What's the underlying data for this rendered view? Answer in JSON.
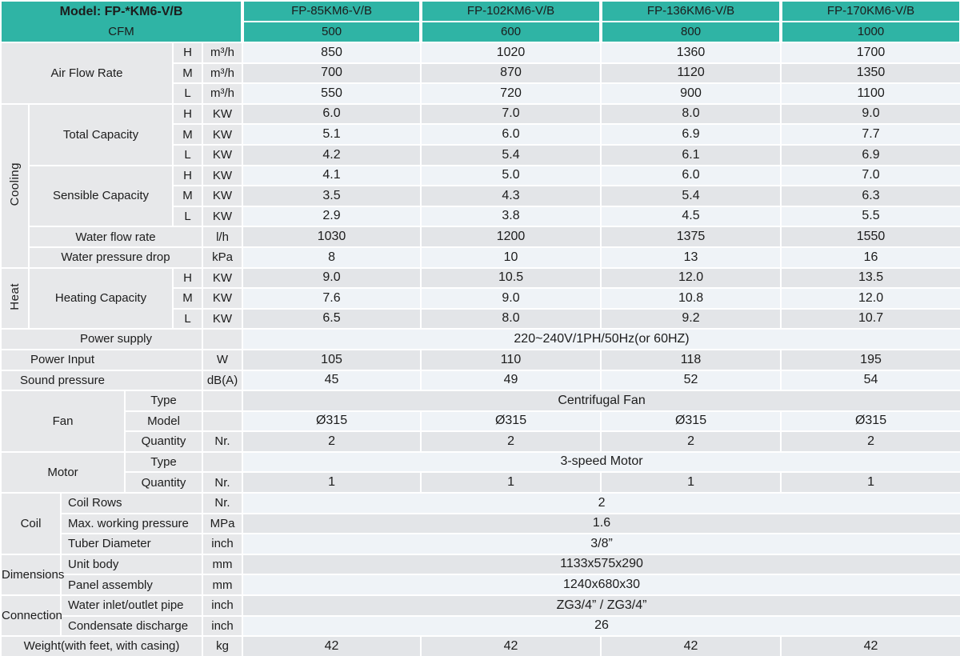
{
  "colors": {
    "accent_teal": "#2fb4a5",
    "label_gray": "#e7e8ea",
    "stripe_light": "#eff3f7",
    "stripe_dark": "#e3e5e8",
    "border_white": "#ffffff",
    "text": "#1c1c1c"
  },
  "table": {
    "rows": [
      {
        "cells": [
          {
            "k": "th-left",
            "cs": 6,
            "rs": 2,
            "lines": [
              "Model: FP-*KM6-V/B",
              "CFM"
            ]
          },
          {
            "k": "th-model",
            "t": "FP-85KM6-V/B"
          },
          {
            "k": "th-model",
            "t": "FP-102KM6-V/B"
          },
          {
            "k": "th-model",
            "t": "FP-136KM6-V/B"
          },
          {
            "k": "th-model",
            "t": "FP-170KM6-V/B"
          }
        ]
      },
      {
        "cells": [
          {
            "k": "th-cfm",
            "t": "500"
          },
          {
            "k": "th-cfm",
            "t": "600"
          },
          {
            "k": "th-cfm",
            "t": "800"
          },
          {
            "k": "th-cfm",
            "t": "1000"
          }
        ]
      },
      {
        "cells": [
          {
            "k": "lbl",
            "cs": 4,
            "rs": 3,
            "t": "Air Flow Rate"
          },
          {
            "k": "sub",
            "t": "H"
          },
          {
            "k": "unit",
            "t": "m³/h"
          },
          {
            "t": "850"
          },
          {
            "t": "1020"
          },
          {
            "t": "1360"
          },
          {
            "t": "1700"
          }
        ]
      },
      {
        "cells": [
          {
            "k": "sub",
            "t": "M"
          },
          {
            "k": "unit",
            "t": "m³/h"
          },
          {
            "t": "700"
          },
          {
            "t": "870"
          },
          {
            "t": "1120"
          },
          {
            "t": "1350"
          }
        ]
      },
      {
        "cells": [
          {
            "k": "sub",
            "t": "L"
          },
          {
            "k": "unit",
            "t": "m³/h"
          },
          {
            "t": "550"
          },
          {
            "t": "720"
          },
          {
            "t": "900"
          },
          {
            "t": "1100"
          }
        ]
      },
      {
        "cells": [
          {
            "k": "grp-v",
            "rs": 8,
            "t": "Cooling"
          },
          {
            "k": "lbl",
            "cs": 3,
            "rs": 3,
            "t": "Total Capacity"
          },
          {
            "k": "sub",
            "t": "H"
          },
          {
            "k": "unit",
            "t": "KW"
          },
          {
            "t": "6.0"
          },
          {
            "t": "7.0"
          },
          {
            "t": "8.0"
          },
          {
            "t": "9.0"
          }
        ]
      },
      {
        "cells": [
          {
            "k": "sub",
            "t": "M"
          },
          {
            "k": "unit",
            "t": "KW"
          },
          {
            "t": "5.1"
          },
          {
            "t": "6.0"
          },
          {
            "t": "6.9"
          },
          {
            "t": "7.7"
          }
        ]
      },
      {
        "cells": [
          {
            "k": "sub",
            "t": "L"
          },
          {
            "k": "unit",
            "t": "KW"
          },
          {
            "t": "4.2"
          },
          {
            "t": "5.4"
          },
          {
            "t": "6.1"
          },
          {
            "t": "6.9"
          }
        ]
      },
      {
        "cells": [
          {
            "k": "lbl",
            "cs": 3,
            "rs": 3,
            "t": "Sensible Capacity"
          },
          {
            "k": "sub",
            "t": "H"
          },
          {
            "k": "unit",
            "t": "KW"
          },
          {
            "t": "4.1"
          },
          {
            "t": "5.0"
          },
          {
            "t": "6.0"
          },
          {
            "t": "7.0"
          }
        ]
      },
      {
        "cells": [
          {
            "k": "sub",
            "t": "M"
          },
          {
            "k": "unit",
            "t": "KW"
          },
          {
            "t": "3.5"
          },
          {
            "t": "4.3"
          },
          {
            "t": "5.4"
          },
          {
            "t": "6.3"
          }
        ]
      },
      {
        "cells": [
          {
            "k": "sub",
            "t": "L"
          },
          {
            "k": "unit",
            "t": "KW"
          },
          {
            "t": "2.9"
          },
          {
            "t": "3.8"
          },
          {
            "t": "4.5"
          },
          {
            "t": "5.5"
          }
        ]
      },
      {
        "cells": [
          {
            "k": "lbl",
            "cs": 4,
            "t": "Water flow rate"
          },
          {
            "k": "unit",
            "t": "l/h"
          },
          {
            "t": "1030"
          },
          {
            "t": "1200"
          },
          {
            "t": "1375"
          },
          {
            "t": "1550"
          }
        ]
      },
      {
        "cells": [
          {
            "k": "lbl",
            "cs": 4,
            "t": "Water pressure drop"
          },
          {
            "k": "unit",
            "t": "kPa"
          },
          {
            "t": "8"
          },
          {
            "t": "10"
          },
          {
            "t": "13"
          },
          {
            "t": "16"
          }
        ]
      },
      {
        "cells": [
          {
            "k": "grp-v",
            "rs": 3,
            "t": "Heat"
          },
          {
            "k": "lbl",
            "cs": 3,
            "rs": 3,
            "t": "Heating Capacity"
          },
          {
            "k": "sub",
            "t": "H"
          },
          {
            "k": "unit",
            "t": "KW"
          },
          {
            "t": "9.0"
          },
          {
            "t": "10.5"
          },
          {
            "t": "12.0"
          },
          {
            "t": "13.5"
          }
        ]
      },
      {
        "cells": [
          {
            "k": "sub",
            "t": "M"
          },
          {
            "k": "unit",
            "t": "KW"
          },
          {
            "t": "7.6"
          },
          {
            "t": "9.0"
          },
          {
            "t": "10.8"
          },
          {
            "t": "12.0"
          }
        ]
      },
      {
        "cells": [
          {
            "k": "sub",
            "t": "L"
          },
          {
            "k": "unit",
            "t": "KW"
          },
          {
            "t": "6.5"
          },
          {
            "t": "8.0"
          },
          {
            "t": "9.2"
          },
          {
            "t": "10.7"
          }
        ]
      },
      {
        "cells": [
          {
            "k": "lbl-pl",
            "cs": 5,
            "t": "Power supply"
          },
          {
            "k": "unit",
            "t": ""
          },
          {
            "cs": 4,
            "t": "220~240V/1PH/50Hz(or 60HZ)"
          }
        ]
      },
      {
        "cells": [
          {
            "k": "lbl-pr",
            "cs": 5,
            "t": "Power Input"
          },
          {
            "k": "unit",
            "t": "W"
          },
          {
            "t": "105"
          },
          {
            "t": "110"
          },
          {
            "t": "118"
          },
          {
            "t": "195"
          }
        ]
      },
      {
        "cells": [
          {
            "k": "lbl-pr",
            "cs": 5,
            "t": "Sound pressure"
          },
          {
            "k": "unit",
            "t": "dB(A)"
          },
          {
            "t": "45"
          },
          {
            "t": "49"
          },
          {
            "t": "52"
          },
          {
            "t": "54"
          }
        ]
      },
      {
        "cells": [
          {
            "k": "grp",
            "cs": 3,
            "rs": 3,
            "t": "Fan"
          },
          {
            "k": "sub",
            "cs": 2,
            "t": "Type"
          },
          {
            "k": "unit",
            "t": ""
          },
          {
            "cs": 4,
            "t": "Centrifugal Fan"
          }
        ]
      },
      {
        "cells": [
          {
            "k": "sub",
            "cs": 2,
            "t": "Model"
          },
          {
            "k": "unit",
            "t": ""
          },
          {
            "t": "Ø315"
          },
          {
            "t": "Ø315"
          },
          {
            "t": "Ø315"
          },
          {
            "t": "Ø315"
          }
        ]
      },
      {
        "cells": [
          {
            "k": "sub",
            "cs": 2,
            "t": "Quantity"
          },
          {
            "k": "unit",
            "t": "Nr."
          },
          {
            "t": "2"
          },
          {
            "t": "2"
          },
          {
            "t": "2"
          },
          {
            "t": "2"
          }
        ]
      },
      {
        "cells": [
          {
            "k": "grp",
            "cs": 3,
            "rs": 2,
            "t": "Motor"
          },
          {
            "k": "sub",
            "cs": 2,
            "t": "Type"
          },
          {
            "k": "unit",
            "t": ""
          },
          {
            "cs": 4,
            "t": "3-speed Motor"
          }
        ]
      },
      {
        "cells": [
          {
            "k": "sub",
            "cs": 2,
            "t": "Quantity"
          },
          {
            "k": "unit",
            "t": "Nr."
          },
          {
            "t": "1"
          },
          {
            "t": "1"
          },
          {
            "t": "1"
          },
          {
            "t": "1"
          }
        ]
      },
      {
        "cells": [
          {
            "k": "grp",
            "cs": 2,
            "rs": 3,
            "t": "Coil"
          },
          {
            "k": "lbl-l",
            "cs": 3,
            "t": "Coil Rows"
          },
          {
            "k": "unit",
            "t": "Nr."
          },
          {
            "cs": 4,
            "t": "2"
          }
        ]
      },
      {
        "cells": [
          {
            "k": "lbl-l",
            "cs": 3,
            "t": "Max. working pressure"
          },
          {
            "k": "unit",
            "t": "MPa"
          },
          {
            "cs": 4,
            "t": "1.6"
          }
        ]
      },
      {
        "cells": [
          {
            "k": "lbl-l",
            "cs": 3,
            "t": "Tuber Diameter"
          },
          {
            "k": "unit",
            "t": "inch"
          },
          {
            "cs": 4,
            "t": "3/8”"
          }
        ]
      },
      {
        "cells": [
          {
            "k": "grp-of",
            "cs": 2,
            "rs": 2,
            "t": "Dimensions"
          },
          {
            "k": "lbl-l",
            "cs": 3,
            "t": "Unit body"
          },
          {
            "k": "unit",
            "t": "mm"
          },
          {
            "cs": 4,
            "t": "1133x575x290"
          }
        ]
      },
      {
        "cells": [
          {
            "k": "lbl-l",
            "cs": 3,
            "t": "Panel assembly"
          },
          {
            "k": "unit",
            "t": "mm"
          },
          {
            "cs": 4,
            "t": "1240x680x30"
          }
        ]
      },
      {
        "cells": [
          {
            "k": "grp-of",
            "cs": 2,
            "rs": 2,
            "t": "Connection"
          },
          {
            "k": "lbl-l",
            "cs": 3,
            "t": "Water inlet/outlet pipe"
          },
          {
            "k": "unit",
            "t": "inch"
          },
          {
            "cs": 4,
            "t": "ZG3/4” / ZG3/4”"
          }
        ]
      },
      {
        "cells": [
          {
            "k": "lbl-l",
            "cs": 3,
            "t": "Condensate discharge"
          },
          {
            "k": "unit",
            "t": "inch"
          },
          {
            "cs": 4,
            "t": "26"
          }
        ]
      },
      {
        "cells": [
          {
            "k": "lbl",
            "cs": 5,
            "t": "Weight(with feet, with casing)"
          },
          {
            "k": "unit",
            "t": "kg"
          },
          {
            "t": "42"
          },
          {
            "t": "42"
          },
          {
            "t": "42"
          },
          {
            "t": "42"
          }
        ]
      }
    ]
  }
}
